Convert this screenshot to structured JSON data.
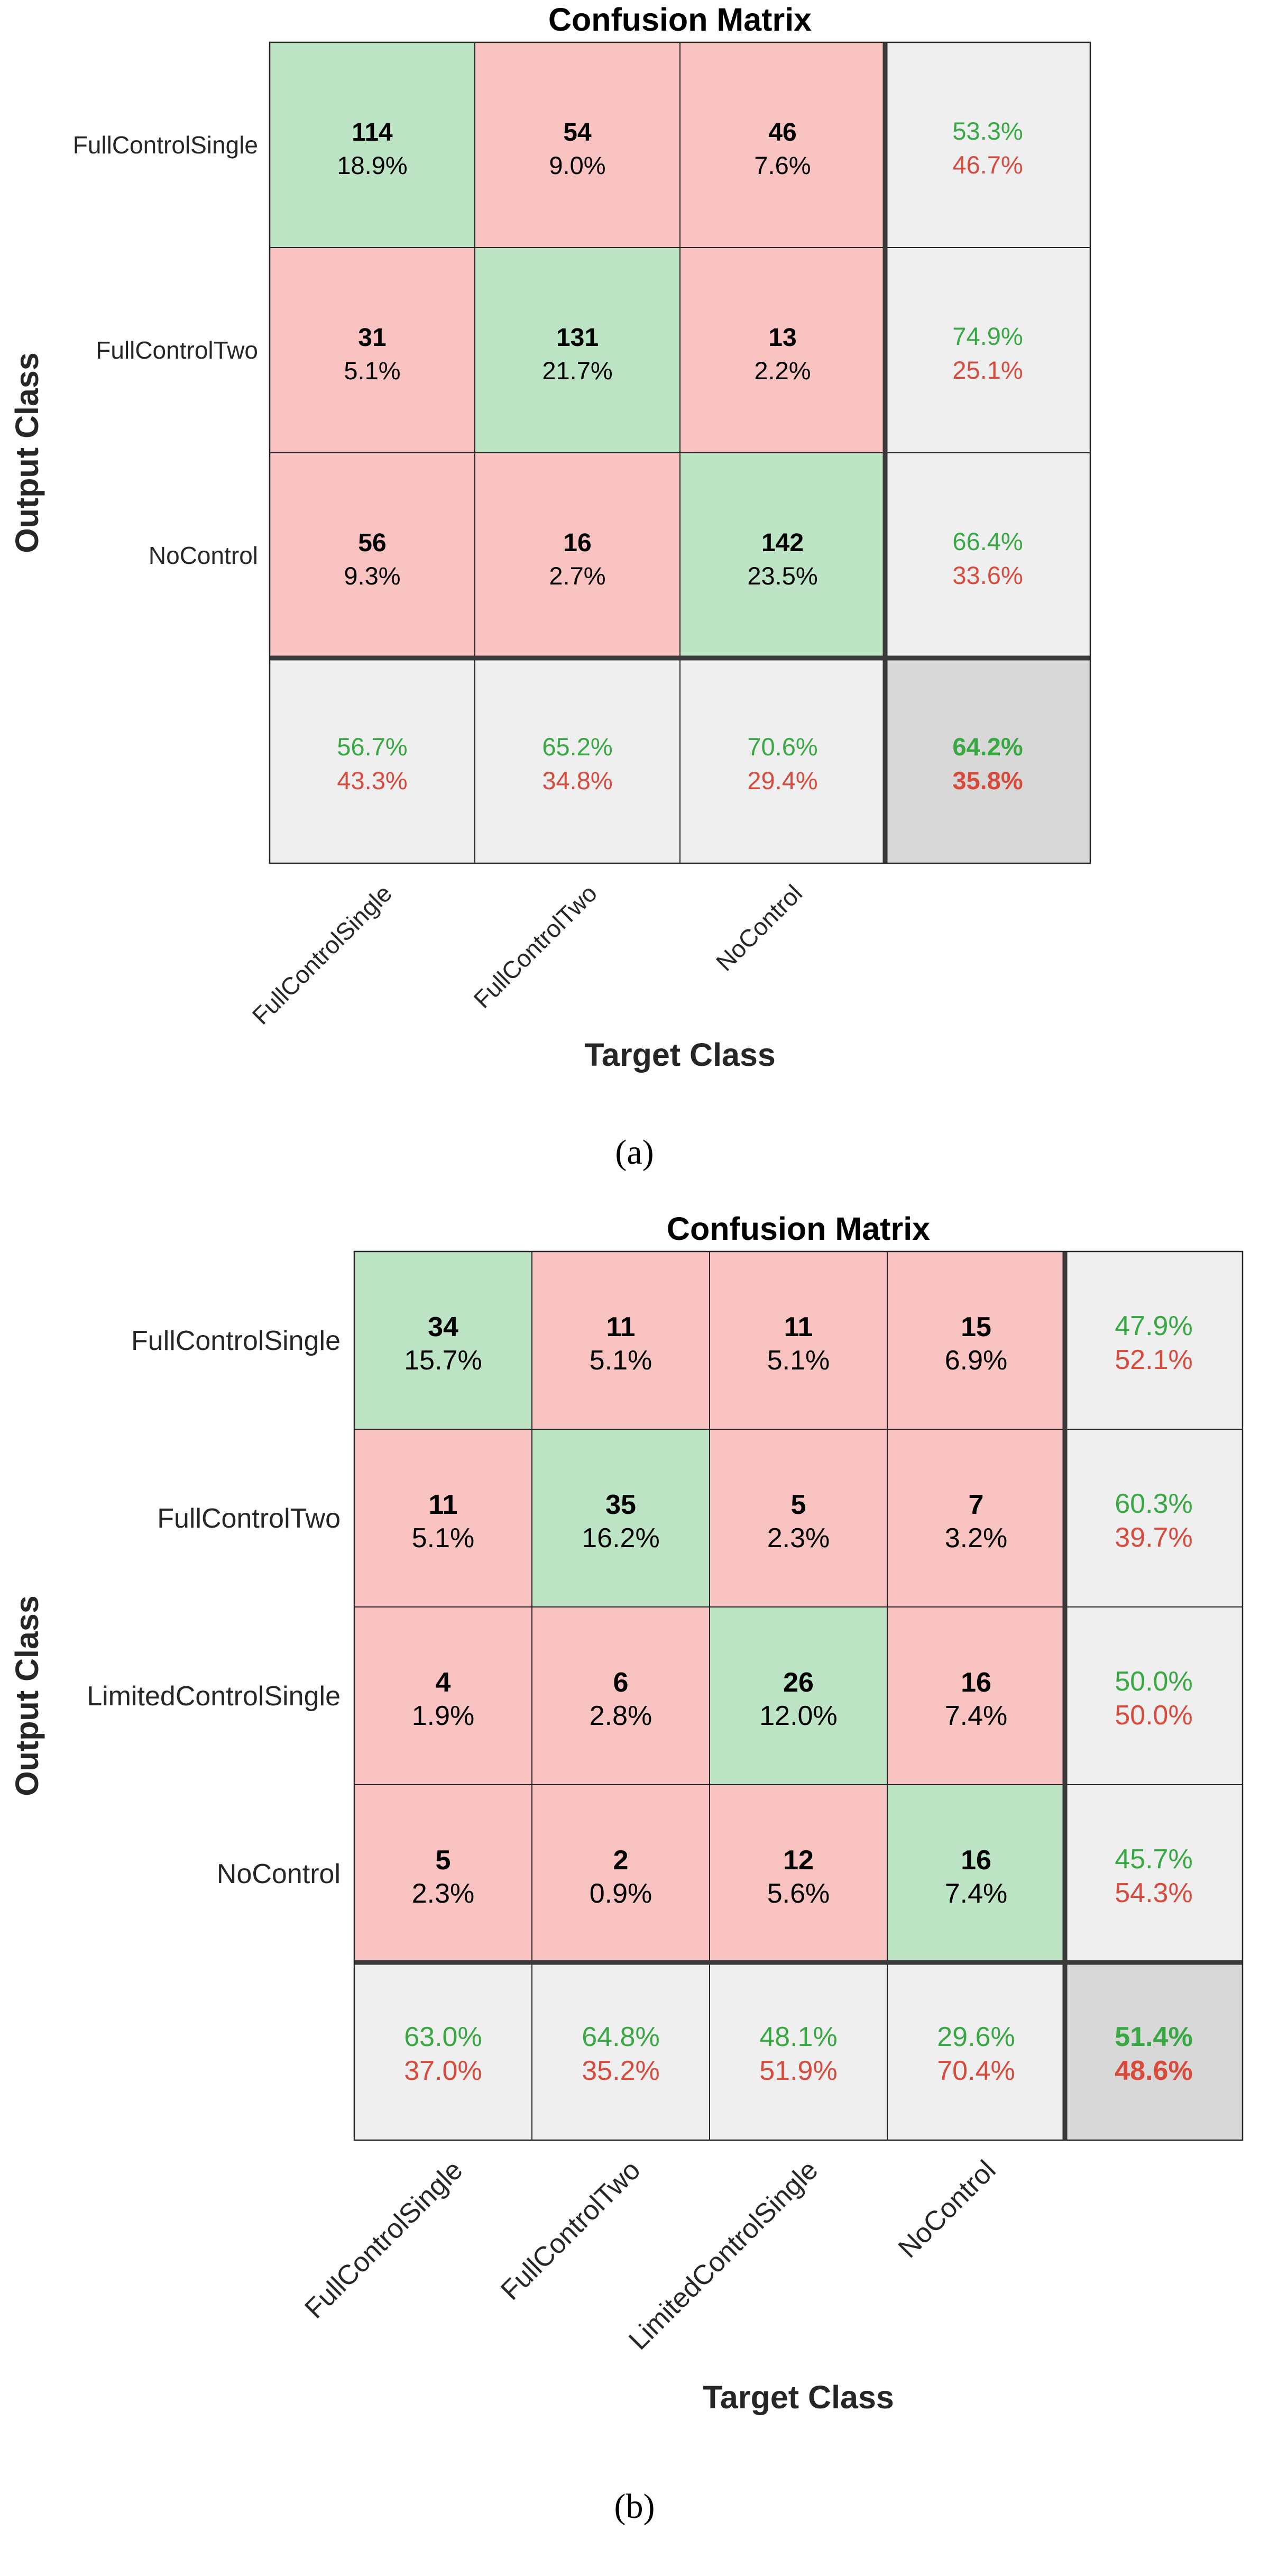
{
  "colors": {
    "correct_cell": "#bde5c5",
    "incorrect_cell": "#f8c3c1",
    "summary_cell": "#efefef",
    "total_cell": "#d8d8d8",
    "pct_good": "#38a843",
    "pct_bad": "#d84a3c",
    "grid": "#262626",
    "text": "#000000"
  },
  "chart_data": [
    {
      "type": "heatmap",
      "title": "Confusion Matrix",
      "xlabel": "Target Class",
      "ylabel": "Output Class",
      "sublabel": "(a)",
      "classes": [
        "FullControlSingle",
        "FullControlTwo",
        "NoControl"
      ],
      "counts": [
        [
          114,
          54,
          46
        ],
        [
          31,
          131,
          13
        ],
        [
          56,
          16,
          142
        ]
      ],
      "percents": [
        [
          "18.9%",
          "9.0%",
          "7.6%"
        ],
        [
          "5.1%",
          "21.7%",
          "2.2%"
        ],
        [
          "9.3%",
          "2.7%",
          "23.5%"
        ]
      ],
      "row_summary": [
        [
          "53.3%",
          "46.7%"
        ],
        [
          "74.9%",
          "25.1%"
        ],
        [
          "66.4%",
          "33.6%"
        ]
      ],
      "col_summary": [
        [
          "56.7%",
          "43.3%"
        ],
        [
          "65.2%",
          "34.8%"
        ],
        [
          "70.6%",
          "29.4%"
        ]
      ],
      "total": [
        "64.2%",
        "35.8%"
      ]
    },
    {
      "type": "heatmap",
      "title": "Confusion Matrix",
      "xlabel": "Target Class",
      "ylabel": "Output Class",
      "sublabel": "(b)",
      "classes": [
        "FullControlSingle",
        "FullControlTwo",
        "LimitedControlSingle",
        "NoControl"
      ],
      "counts": [
        [
          34,
          11,
          11,
          15
        ],
        [
          11,
          35,
          5,
          7
        ],
        [
          4,
          6,
          26,
          16
        ],
        [
          5,
          2,
          12,
          16
        ]
      ],
      "percents": [
        [
          "15.7%",
          "5.1%",
          "5.1%",
          "6.9%"
        ],
        [
          "5.1%",
          "16.2%",
          "2.3%",
          "3.2%"
        ],
        [
          "1.9%",
          "2.8%",
          "12.0%",
          "7.4%"
        ],
        [
          "2.3%",
          "0.9%",
          "5.6%",
          "7.4%"
        ]
      ],
      "row_summary": [
        [
          "47.9%",
          "52.1%"
        ],
        [
          "60.3%",
          "39.7%"
        ],
        [
          "50.0%",
          "50.0%"
        ],
        [
          "45.7%",
          "54.3%"
        ]
      ],
      "col_summary": [
        [
          "63.0%",
          "37.0%"
        ],
        [
          "64.8%",
          "35.2%"
        ],
        [
          "48.1%",
          "51.9%"
        ],
        [
          "29.6%",
          "70.4%"
        ]
      ],
      "total": [
        "51.4%",
        "48.6%"
      ]
    }
  ]
}
